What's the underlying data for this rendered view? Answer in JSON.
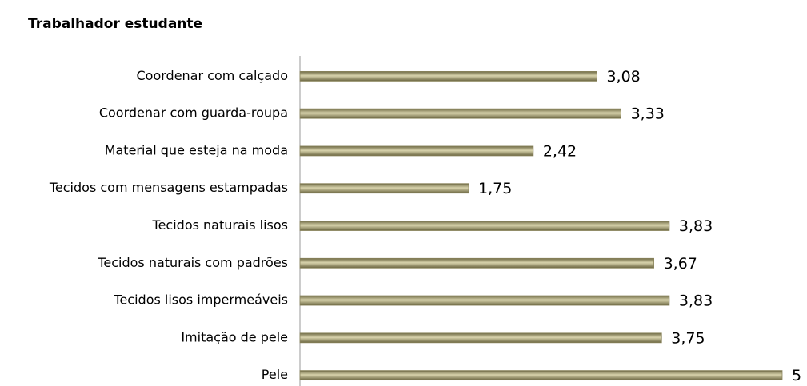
{
  "chart_data": {
    "type": "bar",
    "orientation": "horizontal",
    "title": "Trabalhador estudante",
    "categories": [
      "Coordenar com calçado",
      "Coordenar com guarda-roupa",
      "Material que esteja na moda",
      "Tecidos com mensagens estampadas",
      "Tecidos naturais lisos",
      "Tecidos naturais com padrões",
      "Tecidos lisos impermeáveis",
      "Imitação de pele",
      "Pele"
    ],
    "values": [
      3.08,
      3.33,
      2.42,
      1.75,
      3.83,
      3.67,
      3.83,
      3.75,
      5
    ],
    "value_labels": [
      "3,08",
      "3,33",
      "2,42",
      "1,75",
      "3,83",
      "3,67",
      "3,83",
      "3,75",
      "5"
    ],
    "color": "#8a845c",
    "xlim": [
      0,
      5
    ]
  }
}
